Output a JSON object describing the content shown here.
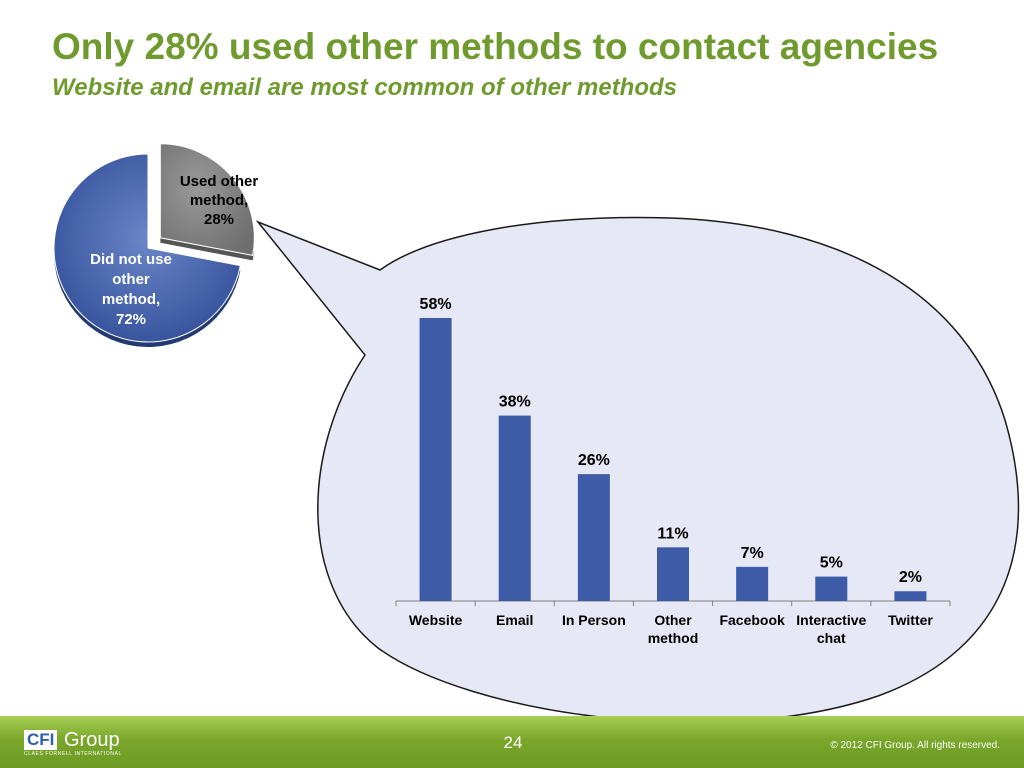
{
  "slide": {
    "title": "Only 28% used other methods to contact agencies",
    "subtitle": "Website and email are most common of other methods",
    "page_number": "24",
    "copyright": "© 2012 CFI Group. All rights reserved.",
    "logo": {
      "mark": "CFI",
      "name": "Group",
      "tagline": "CLAES FORNELL INTERNATIONAL"
    }
  },
  "colors": {
    "title_green": "#6f9a2e",
    "pie_blue": "#3d5ba6",
    "pie_gray": "#808080",
    "bar_blue": "#3d5ba6",
    "callout_fill": "#e6e8f5"
  },
  "chart_data": [
    {
      "type": "pie",
      "slices": [
        {
          "label": "Did not use other method, 72%",
          "label_lines": [
            "Did not use",
            "other",
            "method,",
            "72%"
          ],
          "value": 72,
          "exploded": false
        },
        {
          "label": "Used other method, 28%",
          "label_lines": [
            "Used other",
            "method,",
            "28%"
          ],
          "value": 28,
          "exploded": true
        }
      ]
    },
    {
      "type": "bar",
      "categories": [
        "Website",
        "Email",
        "In Person",
        "Other method",
        "Facebook",
        "Interactive chat",
        "Twitter"
      ],
      "category_lines": [
        [
          "Website"
        ],
        [
          "Email"
        ],
        [
          "In Person"
        ],
        [
          "Other",
          "method"
        ],
        [
          "Facebook"
        ],
        [
          "Interactive",
          "chat"
        ],
        [
          "Twitter"
        ]
      ],
      "values": [
        58,
        38,
        26,
        11,
        7,
        5,
        2
      ],
      "data_labels": [
        "58%",
        "38%",
        "26%",
        "11%",
        "7%",
        "5%",
        "2%"
      ],
      "ylim": [
        0,
        60
      ],
      "grid": false,
      "legend": "none"
    }
  ]
}
